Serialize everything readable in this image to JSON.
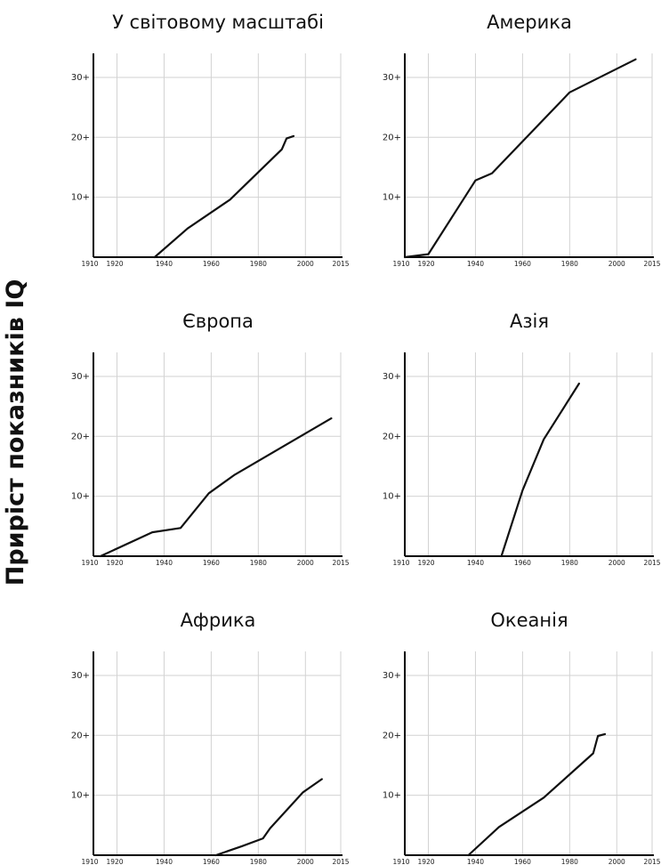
{
  "ylabel": "Приріст показників IQ",
  "chart_data": [
    {
      "type": "line",
      "title": "У світовому масштабі",
      "x_ticks": [
        1910,
        1920,
        1940,
        1960,
        1980,
        2000,
        2015
      ],
      "y_ticks": [
        {
          "value": 10,
          "label": "10+"
        },
        {
          "value": 20,
          "label": "20+"
        },
        {
          "value": 30,
          "label": "30+"
        }
      ],
      "xlim": [
        1910,
        2015
      ],
      "ylim": [
        0,
        34
      ],
      "grid": true,
      "x": [
        1936,
        1950,
        1968,
        1990,
        1992,
        1995
      ],
      "y": [
        0,
        4.8,
        9.6,
        18,
        19.8,
        20.2
      ]
    },
    {
      "type": "line",
      "title": "Америка",
      "x_ticks": [
        1910,
        1920,
        1940,
        1960,
        1980,
        2000,
        2015
      ],
      "y_ticks": [
        {
          "value": 10,
          "label": "10+"
        },
        {
          "value": 20,
          "label": "20+"
        },
        {
          "value": 30,
          "label": "30+"
        }
      ],
      "xlim": [
        1910,
        2015
      ],
      "ylim": [
        0,
        34
      ],
      "grid": true,
      "x": [
        1910,
        1920,
        1940,
        1947,
        1980,
        2008
      ],
      "y": [
        0,
        0.5,
        12.8,
        14,
        27.5,
        33
      ]
    },
    {
      "type": "line",
      "title": "Європа",
      "x_ticks": [
        1910,
        1920,
        1940,
        1960,
        1980,
        2000,
        2015
      ],
      "y_ticks": [
        {
          "value": 10,
          "label": "10+"
        },
        {
          "value": 20,
          "label": "20+"
        },
        {
          "value": 30,
          "label": "30+"
        }
      ],
      "xlim": [
        1910,
        2015
      ],
      "ylim": [
        0,
        34
      ],
      "grid": true,
      "x": [
        1913,
        1935,
        1947,
        1959,
        1970,
        2011
      ],
      "y": [
        0,
        4,
        4.7,
        10.5,
        13.6,
        23
      ]
    },
    {
      "type": "line",
      "title": "Азія",
      "x_ticks": [
        1910,
        1920,
        1940,
        1960,
        1980,
        2000,
        2015
      ],
      "y_ticks": [
        {
          "value": 10,
          "label": "10+"
        },
        {
          "value": 20,
          "label": "20+"
        },
        {
          "value": 30,
          "label": "30+"
        }
      ],
      "xlim": [
        1910,
        2015
      ],
      "ylim": [
        0,
        34
      ],
      "grid": true,
      "x": [
        1951,
        1960,
        1969,
        1984
      ],
      "y": [
        0,
        11,
        19.5,
        28.8
      ]
    },
    {
      "type": "line",
      "title": "Африка",
      "x_ticks": [
        1910,
        1920,
        1940,
        1960,
        1980,
        2000,
        2015
      ],
      "y_ticks": [
        {
          "value": 10,
          "label": "10+"
        },
        {
          "value": 20,
          "label": "20+"
        },
        {
          "value": 30,
          "label": "30+"
        }
      ],
      "xlim": [
        1910,
        2015
      ],
      "ylim": [
        0,
        34
      ],
      "grid": true,
      "x": [
        1962,
        1973,
        1982,
        1985,
        1999,
        2007
      ],
      "y": [
        0,
        1.5,
        2.8,
        4.5,
        10.5,
        12.7
      ]
    },
    {
      "type": "line",
      "title": "Океанія",
      "x_ticks": [
        1910,
        1920,
        1940,
        1960,
        1980,
        2000,
        2015
      ],
      "y_ticks": [
        {
          "value": 10,
          "label": "10+"
        },
        {
          "value": 20,
          "label": "20+"
        },
        {
          "value": 30,
          "label": "30+"
        }
      ],
      "xlim": [
        1910,
        2015
      ],
      "ylim": [
        0,
        34
      ],
      "grid": true,
      "x": [
        1937,
        1950,
        1969,
        1990,
        1992,
        1995
      ],
      "y": [
        0,
        4.7,
        9.6,
        17,
        19.9,
        20.2
      ]
    }
  ]
}
